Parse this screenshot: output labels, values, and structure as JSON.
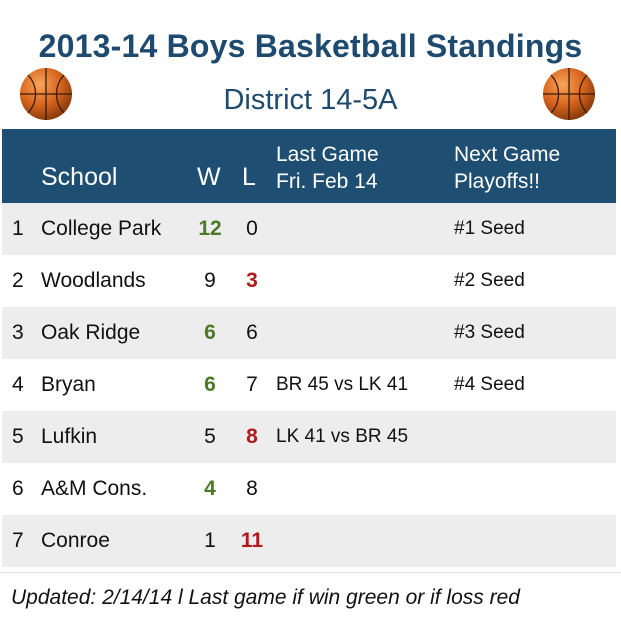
{
  "header": {
    "title": "2013-14 Boys Basketball Standings",
    "subtitle": "District 14-5A"
  },
  "columns": {
    "school": "School",
    "w": "W",
    "l": "L",
    "last_game_line1": "Last Game",
    "last_game_line2": "Fri. Feb 14",
    "next_game_line1": "Next Game",
    "next_game_line2": "Playoffs!!"
  },
  "rows": [
    {
      "rank": "1",
      "school": "College Park",
      "w": "12",
      "l": "0",
      "last_game": "",
      "next_game": "#1 Seed",
      "highlight": "w"
    },
    {
      "rank": "2",
      "school": "Woodlands",
      "w": "9",
      "l": "3",
      "last_game": "",
      "next_game": "#2 Seed",
      "highlight": "l"
    },
    {
      "rank": "3",
      "school": "Oak Ridge",
      "w": "6",
      "l": "6",
      "last_game": "",
      "next_game": "#3 Seed",
      "highlight": "w"
    },
    {
      "rank": "4",
      "school": "Bryan",
      "w": "6",
      "l": "7",
      "last_game": "BR 45 vs LK 41",
      "next_game": "#4 Seed",
      "highlight": "w"
    },
    {
      "rank": "5",
      "school": "Lufkin",
      "w": "5",
      "l": "8",
      "last_game": "LK 41 vs BR 45",
      "next_game": "",
      "highlight": "l"
    },
    {
      "rank": "6",
      "school": "A&M Cons.",
      "w": "4",
      "l": "8",
      "last_game": "",
      "next_game": "",
      "highlight": "w"
    },
    {
      "rank": "7",
      "school": "Conroe",
      "w": "1",
      "l": "11",
      "last_game": "",
      "next_game": "",
      "highlight": "l"
    }
  ],
  "footer": {
    "note": "Updated: 2/14/14  l Last game if win green or if loss red"
  },
  "colors": {
    "title": "#1d4a6e",
    "header_bg": "#1e4e72",
    "win": "#4a7a25",
    "loss": "#b11818",
    "row_shade": "#ededed"
  },
  "icons": [
    "basketball-icon",
    "basketball-icon"
  ]
}
